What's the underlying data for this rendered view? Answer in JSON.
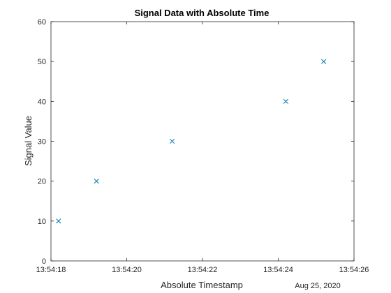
{
  "chart_data": {
    "type": "scatter",
    "title": "Signal Data with Absolute Time",
    "xlabel": "Absolute Timestamp",
    "ylabel": "Signal Value",
    "x_secondary_label": "Aug 25, 2020",
    "x_ticks": [
      "13:54:18",
      "13:54:20",
      "13:54:22",
      "13:54:24",
      "13:54:26"
    ],
    "y_ticks": [
      "0",
      "10",
      "20",
      "30",
      "40",
      "50",
      "60"
    ],
    "xlim": [
      "13:54:18",
      "13:54:26"
    ],
    "ylim": [
      0,
      60
    ],
    "grid": false,
    "marker": "x",
    "series": [
      {
        "color": "#0072BD",
        "points": [
          {
            "x": "13:54:18.2",
            "y": 10
          },
          {
            "x": "13:54:19.2",
            "y": 20
          },
          {
            "x": "13:54:21.2",
            "y": 30
          },
          {
            "x": "13:54:24.2",
            "y": 40
          },
          {
            "x": "13:54:25.2",
            "y": 50
          }
        ]
      }
    ]
  }
}
